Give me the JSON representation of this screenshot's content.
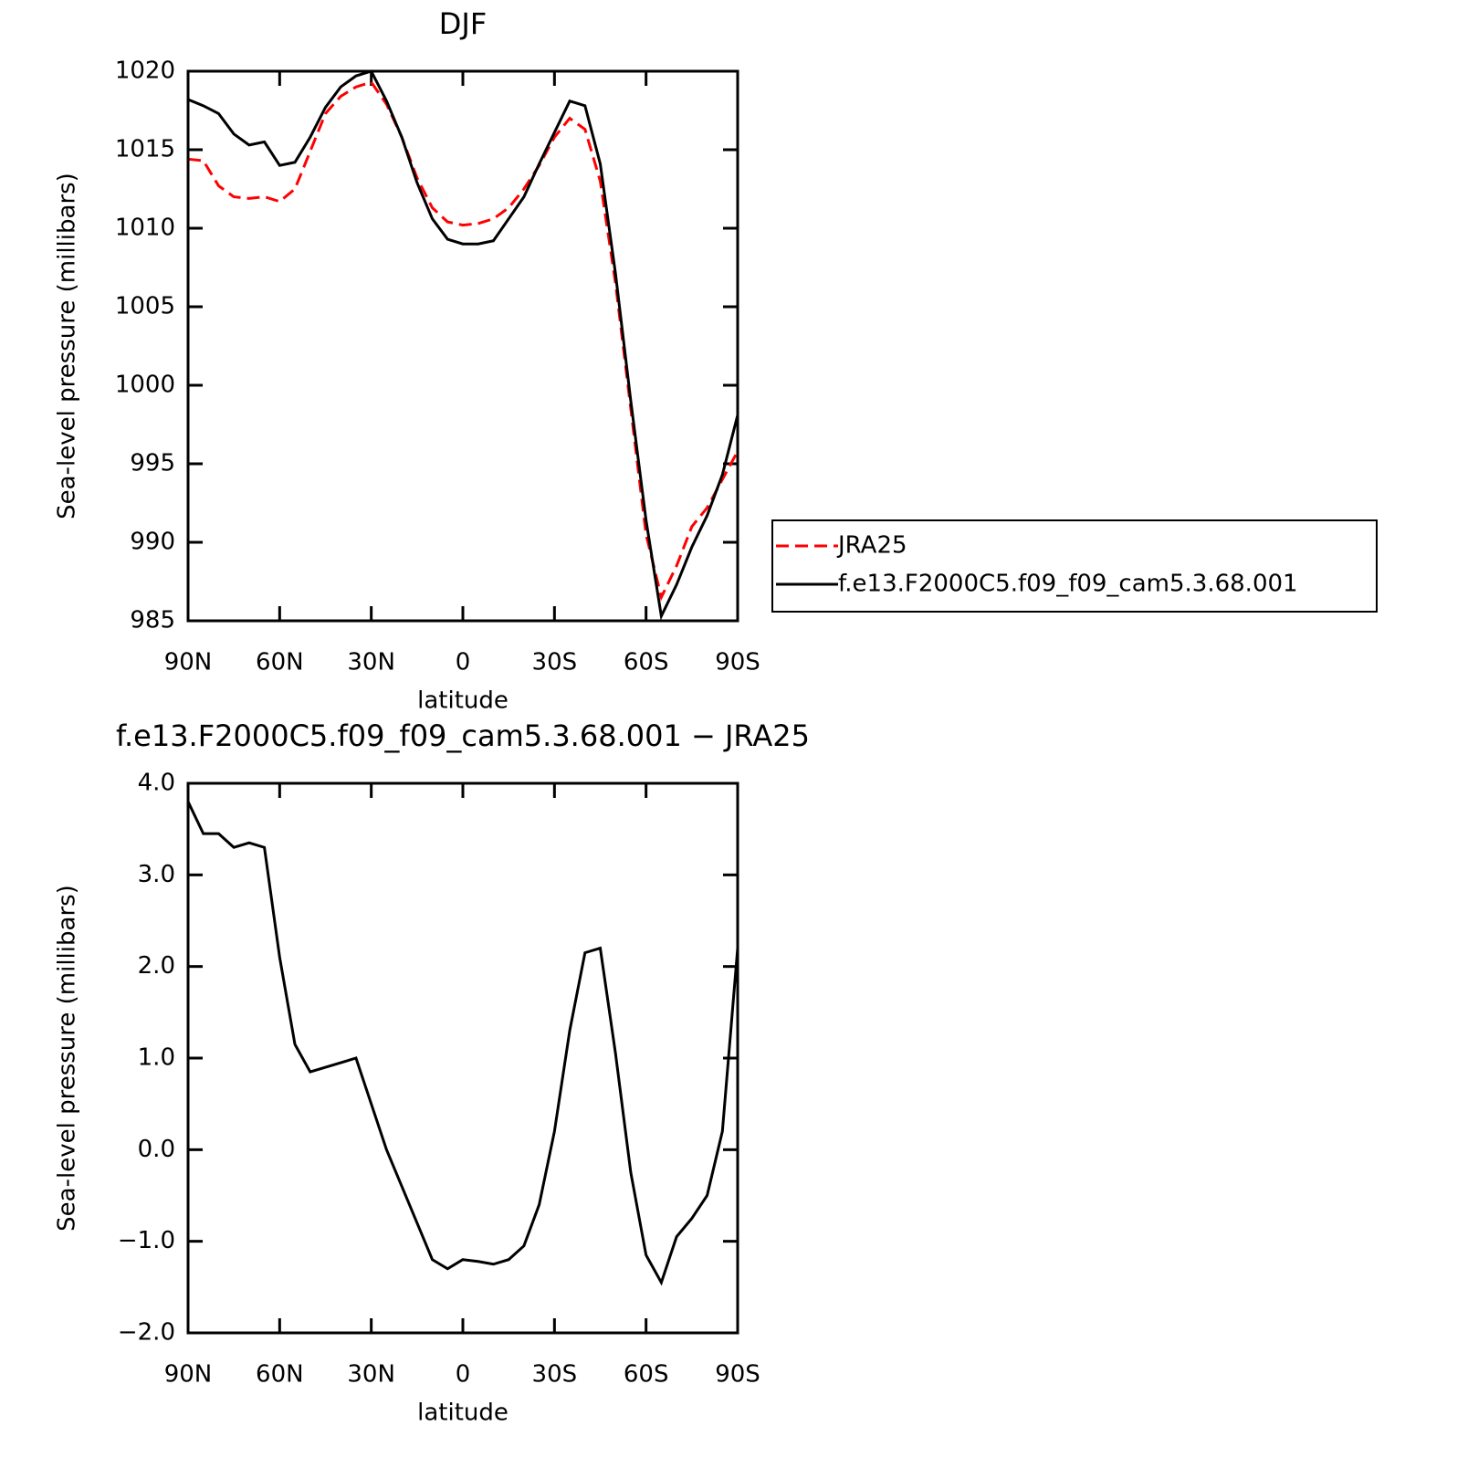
{
  "chart_data": [
    {
      "type": "line",
      "title": "DJF",
      "x_label": "latitude",
      "y_label": "Sea-level pressure (millibars)",
      "x": [
        90,
        85,
        80,
        75,
        70,
        65,
        60,
        55,
        50,
        45,
        40,
        35,
        30,
        25,
        20,
        15,
        10,
        5,
        0,
        -5,
        -10,
        -15,
        -20,
        -25,
        -30,
        -35,
        -40,
        -45,
        -50,
        -55,
        -60,
        -65,
        -70,
        -75,
        -80,
        -85,
        -90
      ],
      "xlim": [
        90,
        -90
      ],
      "xticks": [
        {
          "value": 90,
          "label": "90N"
        },
        {
          "value": 60,
          "label": "60N"
        },
        {
          "value": 30,
          "label": "30N"
        },
        0,
        {
          "value": -30,
          "label": "30S"
        },
        {
          "value": -60,
          "label": "60S"
        },
        {
          "value": -90,
          "label": "90S"
        }
      ],
      "ylim": [
        985,
        1020
      ],
      "yticks": [
        985,
        990,
        995,
        1000,
        1005,
        1010,
        1015,
        1020
      ],
      "legend": "outside-right",
      "series": [
        {
          "name": "JRA25",
          "color": "#ff0000",
          "dash": "dashed",
          "values": [
            1014.4,
            1014.3,
            1012.7,
            1012.0,
            1011.9,
            1012.0,
            1011.7,
            1012.5,
            1014.9,
            1017.3,
            1018.4,
            1019.0,
            1019.3,
            1017.9,
            1015.8,
            1013.2,
            1011.3,
            1010.4,
            1010.2,
            1010.3,
            1010.6,
            1011.3,
            1012.5,
            1014.0,
            1015.8,
            1017.0,
            1016.3,
            1013.0,
            1006.5,
            998.5,
            990.5,
            986.5,
            988.5,
            991.0,
            992.2,
            994.0,
            995.8
          ]
        },
        {
          "name": "f.e13.F2000C5.f09_f09_cam5.3.68.001",
          "color": "#000000",
          "dash": "solid",
          "values": [
            1018.2,
            1017.8,
            1017.3,
            1016.0,
            1015.3,
            1015.5,
            1014.0,
            1014.2,
            1015.8,
            1017.7,
            1019.0,
            1019.7,
            1020.0,
            1018.1,
            1015.8,
            1012.9,
            1010.6,
            1009.3,
            1009.0,
            1009.0,
            1009.2,
            1010.6,
            1012.0,
            1014.1,
            1016.1,
            1018.1,
            1017.8,
            1014.1,
            1007.1,
            999.0,
            991.4,
            985.3,
            987.3,
            989.7,
            991.7,
            994.3,
            998.1
          ]
        }
      ]
    },
    {
      "type": "line",
      "title": "f.e13.F2000C5.f09_f09_cam5.3.68.001 − JRA25",
      "x_label": "latitude",
      "y_label": "Sea-level pressure (millibars)",
      "x": [
        90,
        85,
        80,
        75,
        70,
        65,
        60,
        55,
        50,
        45,
        40,
        35,
        30,
        25,
        20,
        15,
        10,
        5,
        0,
        -5,
        -10,
        -15,
        -20,
        -25,
        -30,
        -35,
        -40,
        -45,
        -50,
        -55,
        -60,
        -65,
        -70,
        -75,
        -80,
        -85,
        -90
      ],
      "xlim": [
        90,
        -90
      ],
      "xticks": [
        {
          "value": 90,
          "label": "90N"
        },
        {
          "value": 60,
          "label": "60N"
        },
        {
          "value": 30,
          "label": "30N"
        },
        0,
        {
          "value": -30,
          "label": "30S"
        },
        {
          "value": -60,
          "label": "60S"
        },
        {
          "value": -90,
          "label": "90S"
        }
      ],
      "ylim": [
        -2,
        4
      ],
      "yticks": [
        {
          "value": -2,
          "label": "−2.0"
        },
        {
          "value": -1,
          "label": "−1.0"
        },
        {
          "value": 0,
          "label": "0.0"
        },
        {
          "value": 1,
          "label": "1.0"
        },
        {
          "value": 2,
          "label": "2.0"
        },
        {
          "value": 3,
          "label": "3.0"
        },
        {
          "value": 4,
          "label": "4.0"
        }
      ],
      "series": [
        {
          "color": "#000000",
          "dash": "solid",
          "values": [
            3.8,
            3.45,
            3.45,
            3.3,
            3.35,
            3.3,
            2.1,
            1.15,
            0.85,
            0.9,
            0.95,
            1.0,
            0.5,
            0.0,
            -0.4,
            -0.8,
            -1.2,
            -1.3,
            -1.2,
            -1.22,
            -1.25,
            -1.2,
            -1.05,
            -0.6,
            0.2,
            1.3,
            2.15,
            2.2,
            1.05,
            -0.25,
            -1.15,
            -1.45,
            -0.95,
            -0.75,
            -0.5,
            0.2,
            2.2
          ]
        }
      ]
    }
  ]
}
